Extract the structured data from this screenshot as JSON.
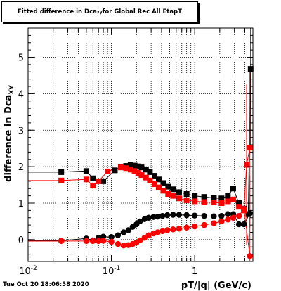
{
  "title_parts": {
    "pre": "Fitted difference in Dca",
    "sub": "xy",
    "post": " for Global Rec All EtapT"
  },
  "datestamp": "Tue Oct 20 18:06:58 2020",
  "chart_data": {
    "type": "scatter",
    "xlabel": "pT/|q| (GeV/c)",
    "ylabel": "difference in Dca",
    "ylabel_sub": "XY",
    "x_scale": "log",
    "xlim": [
      0.01,
      5
    ],
    "ylim": [
      -0.6,
      5.8
    ],
    "x_ticks": [
      {
        "v": 0.01,
        "label": "10",
        "sup": "-2"
      },
      {
        "v": 0.1,
        "label": "10",
        "sup": "-1"
      },
      {
        "v": 1,
        "label": "1",
        "sup": ""
      }
    ],
    "y_ticks": [
      0,
      1,
      2,
      3,
      4,
      5
    ],
    "grid": true,
    "series": [
      {
        "color": "#000000",
        "marker": "square",
        "x": [
          0.025,
          0.05,
          0.06,
          0.08,
          0.11,
          0.13,
          0.15,
          0.17,
          0.19,
          0.21,
          0.23,
          0.26,
          0.29,
          0.33,
          0.37,
          0.42,
          0.48,
          0.55,
          0.65,
          0.8,
          1.0,
          1.3,
          1.7,
          2.1,
          2.5,
          2.9,
          3.4,
          3.9,
          4.4,
          4.7
        ],
        "y": [
          1.85,
          1.88,
          1.68,
          1.6,
          1.9,
          2.0,
          2.02,
          2.05,
          2.03,
          2.01,
          1.98,
          1.92,
          1.85,
          1.75,
          1.65,
          1.55,
          1.45,
          1.38,
          1.3,
          1.25,
          1.2,
          1.17,
          1.14,
          1.13,
          1.2,
          1.4,
          1.0,
          0.85,
          0.7,
          4.68
        ]
      },
      {
        "color": "#ff0000",
        "marker": "square",
        "x": [
          0.025,
          0.05,
          0.06,
          0.07,
          0.09,
          0.13,
          0.15,
          0.17,
          0.19,
          0.21,
          0.23,
          0.26,
          0.29,
          0.33,
          0.37,
          0.42,
          0.48,
          0.55,
          0.65,
          0.8,
          1.0,
          1.3,
          1.7,
          2.1,
          2.5,
          2.9,
          3.4,
          3.9,
          4.2,
          4.6
        ],
        "y": [
          1.62,
          1.65,
          1.48,
          1.6,
          1.87,
          1.98,
          1.96,
          1.92,
          1.88,
          1.83,
          1.77,
          1.7,
          1.62,
          1.52,
          1.43,
          1.34,
          1.25,
          1.2,
          1.13,
          1.08,
          1.05,
          1.03,
          1.02,
          1.0,
          1.05,
          1.1,
          0.9,
          0.8,
          2.05,
          2.52
        ]
      },
      {
        "color": "#000000",
        "marker": "circle",
        "x": [
          0.025,
          0.05,
          0.06,
          0.07,
          0.08,
          0.1,
          0.12,
          0.14,
          0.16,
          0.18,
          0.2,
          0.22,
          0.25,
          0.28,
          0.32,
          0.36,
          0.41,
          0.47,
          0.55,
          0.65,
          0.8,
          1.0,
          1.3,
          1.7,
          2.1,
          2.5,
          2.9,
          3.4,
          3.9,
          4.6
        ],
        "y": [
          -0.03,
          0.03,
          -0.02,
          0.05,
          0.08,
          0.07,
          0.12,
          0.2,
          0.26,
          0.35,
          0.42,
          0.5,
          0.56,
          0.6,
          0.62,
          0.63,
          0.65,
          0.67,
          0.68,
          0.68,
          0.67,
          0.66,
          0.65,
          0.64,
          0.65,
          0.7,
          0.7,
          0.42,
          0.42,
          0.72
        ]
      },
      {
        "color": "#ff0000",
        "marker": "circle",
        "x": [
          0.025,
          0.05,
          0.06,
          0.07,
          0.08,
          0.1,
          0.12,
          0.14,
          0.16,
          0.18,
          0.2,
          0.22,
          0.25,
          0.28,
          0.32,
          0.36,
          0.41,
          0.47,
          0.55,
          0.65,
          0.8,
          1.0,
          1.3,
          1.7,
          2.1,
          2.5,
          2.9,
          3.4,
          3.9,
          4.6
        ],
        "y": [
          -0.04,
          -0.04,
          -0.04,
          -0.04,
          -0.03,
          -0.06,
          -0.12,
          -0.16,
          -0.15,
          -0.12,
          -0.08,
          -0.02,
          0.05,
          0.12,
          0.17,
          0.2,
          0.23,
          0.26,
          0.28,
          0.3,
          0.33,
          0.36,
          0.4,
          0.45,
          0.5,
          0.55,
          0.6,
          0.65,
          0.85,
          -0.45
        ]
      }
    ]
  }
}
